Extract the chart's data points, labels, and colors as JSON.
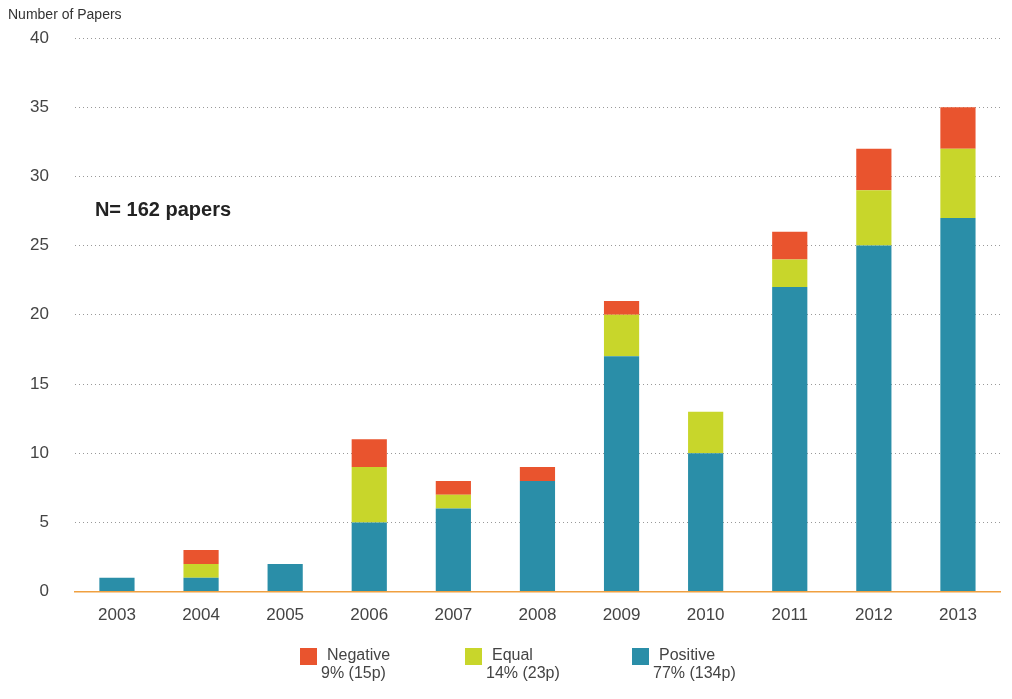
{
  "chart_data": {
    "type": "bar",
    "stacked": true,
    "ylabel": "Number of Papers",
    "categories": [
      "2003",
      "2004",
      "2005",
      "2006",
      "2007",
      "2008",
      "2009",
      "2010",
      "2011",
      "2012",
      "2013"
    ],
    "series": [
      {
        "name": "Positive\n77% (134p)",
        "color": "#2a8ea8",
        "values": [
          1,
          1,
          2,
          5,
          6,
          8,
          17,
          10,
          22,
          25,
          27
        ]
      },
      {
        "name": "Equal\n14% (23p)",
        "color": "#c8d62b",
        "values": [
          0,
          1,
          0,
          4,
          1,
          0,
          3,
          3,
          2,
          4,
          5
        ]
      },
      {
        "name": "Negative\n9% (15p)",
        "color": "#e9542e",
        "values": [
          0,
          1,
          0,
          2,
          1,
          1,
          1,
          0,
          2,
          3,
          3
        ]
      }
    ],
    "ylim": [
      0,
      40
    ],
    "yticks": [
      0,
      5,
      10,
      15,
      20,
      25,
      30,
      35,
      40
    ],
    "grid": "y",
    "legend": "bottom",
    "annotations": [
      "N= 162 papers"
    ]
  }
}
